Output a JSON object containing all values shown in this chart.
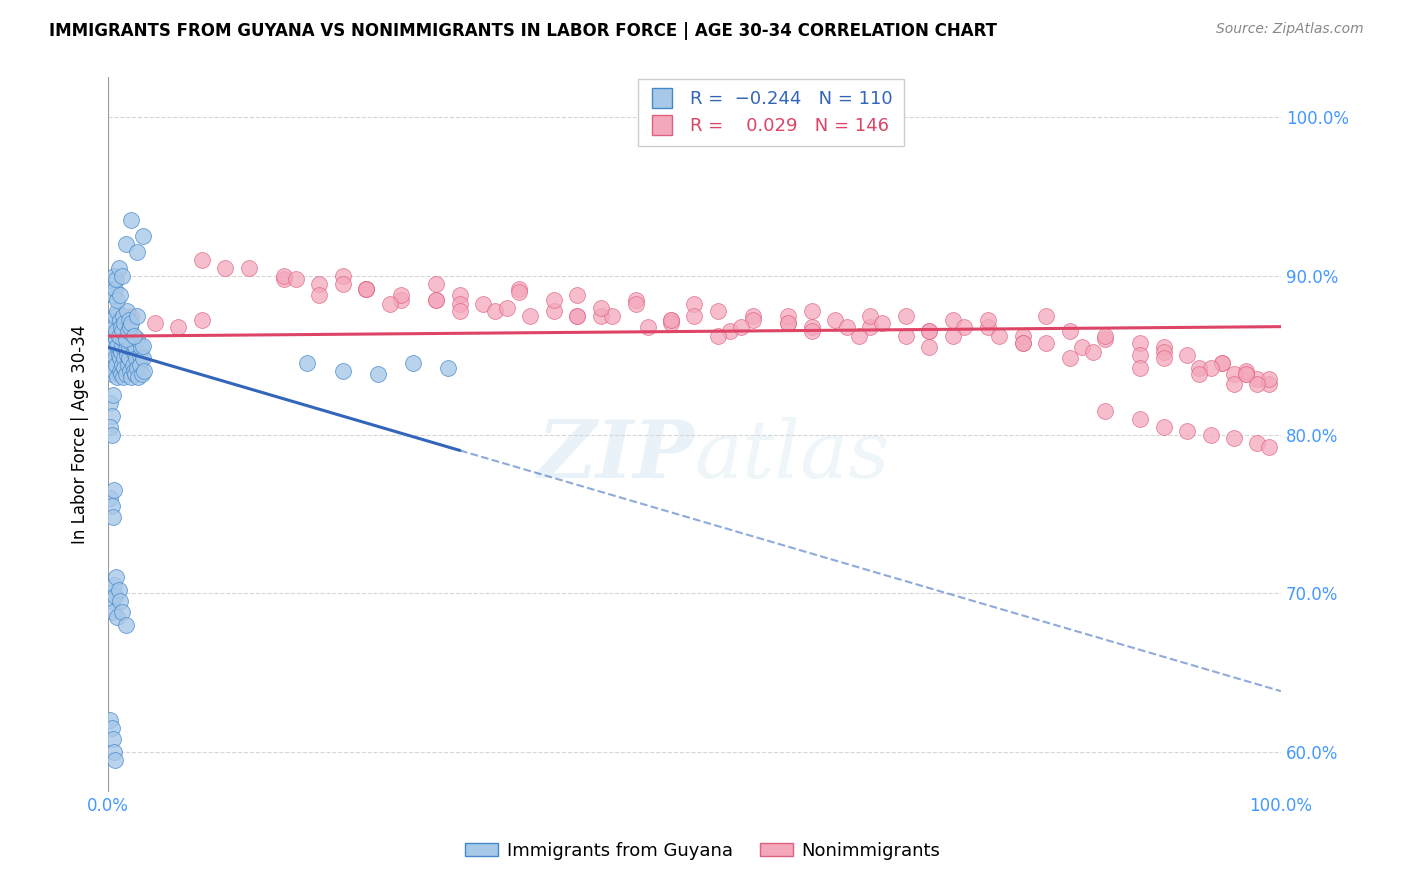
{
  "title": "IMMIGRANTS FROM GUYANA VS NONIMMIGRANTS IN LABOR FORCE | AGE 30-34 CORRELATION CHART",
  "source": "Source: ZipAtlas.com",
  "ylabel": "In Labor Force | Age 30-34",
  "xmin": 0.0,
  "xmax": 1.0,
  "ymin": 0.575,
  "ymax": 1.025,
  "ytick_positions": [
    0.6,
    0.7,
    0.8,
    0.9,
    1.0
  ],
  "ytick_labels": [
    "60.0%",
    "70.0%",
    "80.0%",
    "90.0%",
    "100.0%"
  ],
  "xtick_positions": [
    0.0,
    0.1,
    0.2,
    0.3,
    0.4,
    0.5,
    0.6,
    0.7,
    0.8,
    0.9,
    1.0
  ],
  "xtick_labels": [
    "0.0%",
    "",
    "",
    "",
    "",
    "",
    "",
    "",
    "",
    "",
    "100.0%"
  ],
  "blue_R": -0.244,
  "blue_N": 110,
  "pink_R": 0.029,
  "pink_N": 146,
  "blue_color": "#a8c8e8",
  "pink_color": "#f4a8bc",
  "blue_edge_color": "#4488cc",
  "pink_edge_color": "#e06080",
  "blue_line_color": "#3366bb",
  "pink_line_color": "#dd4466",
  "axis_color": "#4499ff",
  "grid_color": "#cccccc",
  "watermark": "ZIPatlas",
  "blue_line_x0": 0.0,
  "blue_line_y0": 0.855,
  "blue_line_x1": 0.3,
  "blue_line_y1": 0.79,
  "pink_line_x0": 0.0,
  "pink_line_y0": 0.862,
  "pink_line_x1": 1.0,
  "pink_line_y1": 0.868,
  "blue_scatter_x": [
    0.002,
    0.003,
    0.003,
    0.004,
    0.004,
    0.005,
    0.005,
    0.006,
    0.006,
    0.007,
    0.007,
    0.008,
    0.008,
    0.009,
    0.009,
    0.01,
    0.01,
    0.011,
    0.011,
    0.012,
    0.012,
    0.013,
    0.013,
    0.014,
    0.014,
    0.015,
    0.015,
    0.016,
    0.017,
    0.018,
    0.018,
    0.019,
    0.02,
    0.02,
    0.021,
    0.022,
    0.022,
    0.023,
    0.023,
    0.024,
    0.025,
    0.025,
    0.026,
    0.027,
    0.027,
    0.028,
    0.029,
    0.03,
    0.03,
    0.031,
    0.003,
    0.004,
    0.005,
    0.006,
    0.007,
    0.008,
    0.009,
    0.01,
    0.011,
    0.012,
    0.013,
    0.014,
    0.015,
    0.016,
    0.017,
    0.018,
    0.019,
    0.02,
    0.022,
    0.025,
    0.002,
    0.003,
    0.004,
    0.005,
    0.006,
    0.007,
    0.008,
    0.009,
    0.01,
    0.012,
    0.015,
    0.02,
    0.025,
    0.03,
    0.002,
    0.003,
    0.004,
    0.002,
    0.003,
    0.17,
    0.2,
    0.23,
    0.26,
    0.29,
    0.002,
    0.003,
    0.004,
    0.005,
    0.002,
    0.003,
    0.004,
    0.005,
    0.006,
    0.007,
    0.008,
    0.009,
    0.01,
    0.012,
    0.015,
    0.002,
    0.003,
    0.004,
    0.005,
    0.006
  ],
  "blue_scatter_y": [
    0.845,
    0.85,
    0.838,
    0.855,
    0.842,
    0.852,
    0.84,
    0.848,
    0.858,
    0.844,
    0.86,
    0.856,
    0.836,
    0.862,
    0.85,
    0.848,
    0.84,
    0.852,
    0.838,
    0.844,
    0.856,
    0.86,
    0.836,
    0.848,
    0.842,
    0.854,
    0.838,
    0.85,
    0.844,
    0.848,
    0.855,
    0.84,
    0.858,
    0.836,
    0.844,
    0.852,
    0.84,
    0.856,
    0.838,
    0.848,
    0.842,
    0.86,
    0.836,
    0.85,
    0.844,
    0.855,
    0.838,
    0.848,
    0.856,
    0.84,
    0.87,
    0.872,
    0.868,
    0.875,
    0.865,
    0.878,
    0.862,
    0.872,
    0.868,
    0.865,
    0.875,
    0.87,
    0.86,
    0.878,
    0.865,
    0.872,
    0.868,
    0.87,
    0.862,
    0.875,
    0.89,
    0.895,
    0.888,
    0.9,
    0.892,
    0.898,
    0.885,
    0.905,
    0.888,
    0.9,
    0.92,
    0.935,
    0.915,
    0.925,
    0.82,
    0.812,
    0.825,
    0.805,
    0.8,
    0.845,
    0.84,
    0.838,
    0.845,
    0.842,
    0.76,
    0.755,
    0.748,
    0.765,
    0.7,
    0.695,
    0.688,
    0.705,
    0.698,
    0.71,
    0.685,
    0.702,
    0.695,
    0.688,
    0.68,
    0.62,
    0.615,
    0.608,
    0.6,
    0.595
  ],
  "pink_scatter_x": [
    0.08,
    0.12,
    0.15,
    0.18,
    0.2,
    0.22,
    0.25,
    0.28,
    0.3,
    0.32,
    0.35,
    0.38,
    0.4,
    0.42,
    0.45,
    0.48,
    0.5,
    0.52,
    0.55,
    0.58,
    0.6,
    0.62,
    0.65,
    0.68,
    0.7,
    0.72,
    0.75,
    0.78,
    0.8,
    0.82,
    0.85,
    0.88,
    0.9,
    0.92,
    0.95,
    0.97,
    0.98,
    0.99,
    0.2,
    0.25,
    0.3,
    0.35,
    0.4,
    0.45,
    0.5,
    0.55,
    0.6,
    0.65,
    0.7,
    0.75,
    0.8,
    0.85,
    0.9,
    0.95,
    0.97,
    0.99,
    0.15,
    0.22,
    0.28,
    0.33,
    0.38,
    0.43,
    0.48,
    0.53,
    0.58,
    0.63,
    0.68,
    0.73,
    0.78,
    0.83,
    0.88,
    0.93,
    0.96,
    0.98,
    0.18,
    0.24,
    0.3,
    0.36,
    0.42,
    0.48,
    0.54,
    0.6,
    0.66,
    0.72,
    0.78,
    0.84,
    0.9,
    0.94,
    0.97,
    0.1,
    0.16,
    0.22,
    0.28,
    0.34,
    0.4,
    0.46,
    0.52,
    0.58,
    0.64,
    0.7,
    0.76,
    0.82,
    0.88,
    0.93,
    0.96,
    0.85,
    0.88,
    0.9,
    0.92,
    0.94,
    0.96,
    0.98,
    0.99,
    0.02,
    0.04,
    0.06,
    0.08
  ],
  "pink_scatter_y": [
    0.91,
    0.905,
    0.898,
    0.895,
    0.9,
    0.892,
    0.885,
    0.895,
    0.888,
    0.882,
    0.892,
    0.878,
    0.888,
    0.875,
    0.885,
    0.872,
    0.882,
    0.878,
    0.875,
    0.87,
    0.878,
    0.872,
    0.868,
    0.875,
    0.865,
    0.872,
    0.868,
    0.862,
    0.875,
    0.865,
    0.86,
    0.858,
    0.855,
    0.85,
    0.845,
    0.838,
    0.835,
    0.832,
    0.895,
    0.888,
    0.882,
    0.89,
    0.875,
    0.882,
    0.875,
    0.872,
    0.868,
    0.875,
    0.865,
    0.872,
    0.858,
    0.862,
    0.852,
    0.845,
    0.84,
    0.835,
    0.9,
    0.892,
    0.885,
    0.878,
    0.885,
    0.875,
    0.87,
    0.865,
    0.875,
    0.868,
    0.862,
    0.868,
    0.858,
    0.855,
    0.85,
    0.842,
    0.838,
    0.832,
    0.888,
    0.882,
    0.878,
    0.875,
    0.88,
    0.872,
    0.868,
    0.865,
    0.87,
    0.862,
    0.858,
    0.852,
    0.848,
    0.842,
    0.838,
    0.905,
    0.898,
    0.892,
    0.885,
    0.88,
    0.875,
    0.868,
    0.862,
    0.87,
    0.862,
    0.855,
    0.862,
    0.848,
    0.842,
    0.838,
    0.832,
    0.815,
    0.81,
    0.805,
    0.802,
    0.8,
    0.798,
    0.795,
    0.792,
    0.875,
    0.87,
    0.868,
    0.872
  ]
}
